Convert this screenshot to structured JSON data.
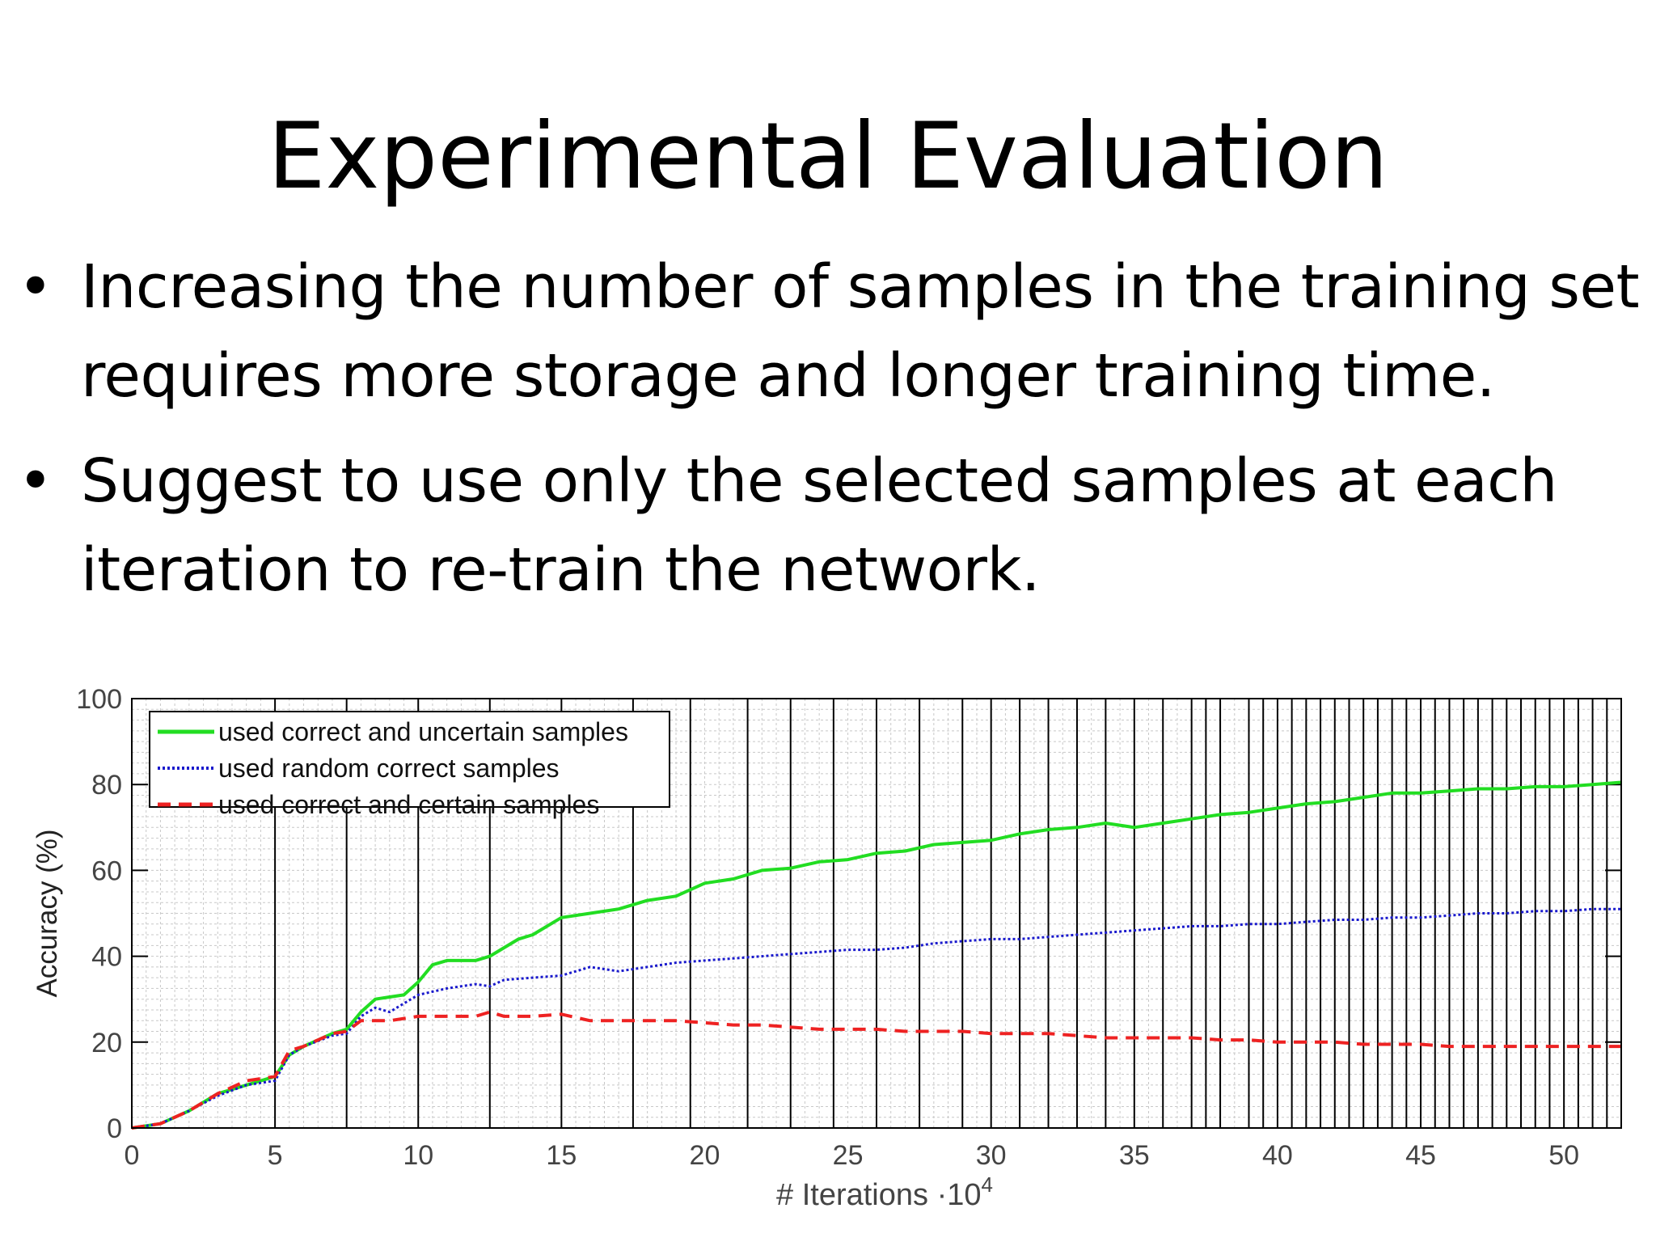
{
  "slide": {
    "title": "Experimental Evaluation",
    "bullets": [
      "Increasing the number of samples in the training set requires more storage and longer training time.",
      "Suggest to use only the selected samples at each iteration to re-train the network."
    ],
    "bullet_glyph": "•"
  },
  "chart_data": {
    "type": "line",
    "xlabel": "# Iterations ·10",
    "xlabel_exponent": "4",
    "ylabel": "Accuracy (%)",
    "xlim": [
      0,
      52
    ],
    "ylim": [
      0,
      100
    ],
    "xticks": [
      0,
      5,
      10,
      15,
      20,
      25,
      30,
      35,
      40,
      45,
      50
    ],
    "yticks": [
      0,
      20,
      40,
      60,
      80,
      100
    ],
    "grid": true,
    "legend_position": "top-left",
    "series": [
      {
        "name": "used correct and uncertain samples",
        "color": "#22dd22",
        "style": "solid",
        "x": [
          0,
          1,
          2,
          3,
          4,
          5,
          5.5,
          6,
          7,
          7.5,
          8,
          8.5,
          9,
          9.5,
          10,
          10.5,
          11,
          12,
          12.5,
          13,
          13.5,
          14,
          15,
          16,
          17,
          18,
          19,
          20,
          21,
          22,
          23,
          24,
          25,
          26,
          27,
          28,
          29,
          30,
          31,
          32,
          33,
          34,
          35,
          36,
          37,
          38,
          39,
          40,
          41,
          42,
          43,
          44,
          45,
          46,
          47,
          48,
          49,
          50,
          51,
          52
        ],
        "y": [
          0,
          1,
          4,
          8,
          10,
          12,
          17,
          19,
          22,
          23,
          27,
          30,
          30.5,
          31,
          34,
          38,
          39,
          39,
          40,
          42,
          44,
          45,
          49,
          50,
          51,
          53,
          54,
          57,
          58,
          60,
          60.5,
          62,
          62.5,
          64,
          64.5,
          66,
          66.5,
          67,
          68.5,
          69.5,
          70,
          71,
          70,
          71,
          72,
          73,
          73.5,
          74.5,
          75.5,
          76,
          77,
          78,
          78,
          78.5,
          79,
          79,
          79.5,
          79.5,
          80,
          80.5
        ]
      },
      {
        "name": "used random correct samples",
        "color": "#1a1acc",
        "style": "dotted",
        "x": [
          0,
          1,
          2,
          3,
          4,
          5,
          5.5,
          6,
          7,
          7.5,
          8,
          8.5,
          9,
          10,
          11,
          12,
          12.5,
          13,
          14,
          15,
          16,
          17,
          18,
          19,
          20,
          21,
          22,
          23,
          24,
          25,
          26,
          27,
          28,
          29,
          30,
          31,
          32,
          33,
          34,
          35,
          36,
          37,
          38,
          39,
          40,
          41,
          42,
          43,
          44,
          45,
          46,
          47,
          48,
          49,
          50,
          51,
          52
        ],
        "y": [
          0,
          1,
          4,
          7.5,
          10,
          11,
          17,
          19,
          21.5,
          22,
          26,
          28,
          27,
          31,
          32.5,
          33.5,
          33,
          34.5,
          35,
          35.5,
          37.5,
          36.5,
          37.5,
          38.5,
          39,
          39.5,
          40,
          40.5,
          41,
          41.5,
          41.5,
          42,
          43,
          43.5,
          44,
          44,
          44.5,
          45,
          45.5,
          46,
          46.5,
          47,
          47,
          47.5,
          47.5,
          48,
          48.5,
          48.5,
          49,
          49,
          49.5,
          50,
          50,
          50.5,
          50.5,
          51,
          51
        ]
      },
      {
        "name": "used correct and certain samples",
        "color": "#ee2222",
        "style": "dashed",
        "x": [
          0,
          1,
          2,
          3,
          4,
          5,
          5.5,
          6,
          7,
          7.5,
          8,
          9,
          10,
          11,
          12,
          12.5,
          13,
          14,
          15,
          16,
          17,
          18,
          19,
          20,
          21,
          22,
          23,
          24,
          25,
          26,
          27,
          28,
          29,
          30,
          31,
          32,
          33,
          34,
          35,
          36,
          37,
          38,
          39,
          40,
          41,
          42,
          43,
          44,
          45,
          46,
          47,
          48,
          49,
          50,
          51,
          52
        ],
        "y": [
          0,
          1,
          4,
          8,
          11,
          12,
          18,
          19,
          22,
          22.5,
          25,
          25,
          26,
          26,
          26,
          27,
          26,
          26,
          26.5,
          25,
          25,
          25,
          25,
          24.5,
          24,
          24,
          23.5,
          23,
          23,
          23,
          22.5,
          22.5,
          22.5,
          22,
          22,
          22,
          21.5,
          21,
          21,
          21,
          21,
          20.5,
          20.5,
          20,
          20,
          20,
          19.5,
          19.5,
          19.5,
          19,
          19,
          19,
          19,
          19,
          19,
          19
        ]
      }
    ]
  }
}
